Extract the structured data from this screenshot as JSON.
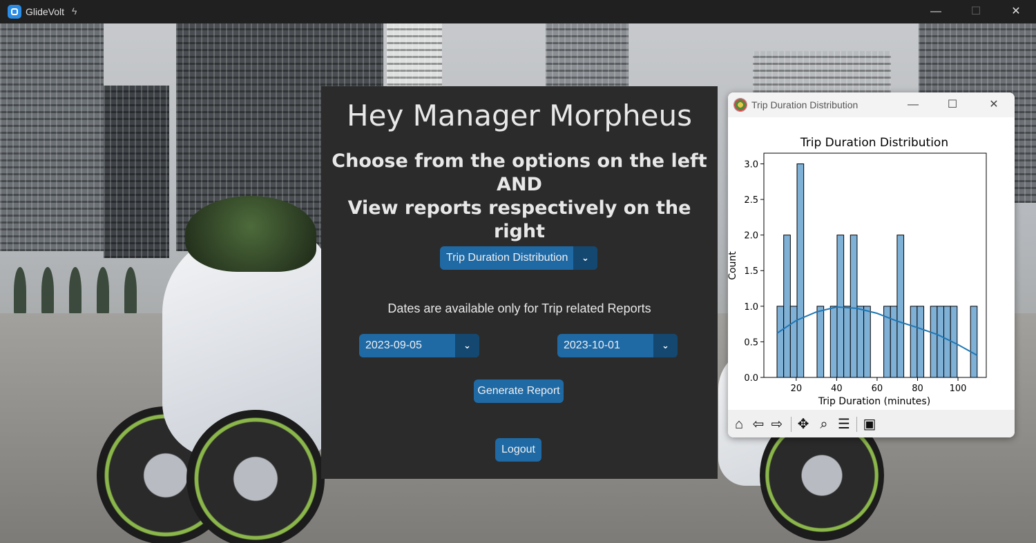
{
  "app": {
    "title": "GlideVolt",
    "title_suffix_icon": "bolt-icon",
    "window_controls": {
      "minimize": "—",
      "maximize": "☐",
      "close": "✕"
    }
  },
  "panel": {
    "greeting": "Hey Manager Morpheus",
    "instruction_lines": [
      "Choose from the options on the left",
      "AND",
      "View reports respectively on the right"
    ],
    "report_select": {
      "value": "Trip Duration Distribution",
      "arrow": "⌄"
    },
    "dates_note": "Dates are available only for Trip related Reports",
    "start_date": {
      "value": "2023-09-05",
      "arrow": "⌄"
    },
    "end_date": {
      "value": "2023-10-01",
      "arrow": "⌄"
    },
    "generate_label": "Generate Report",
    "logout_label": "Logout",
    "colors": {
      "panel_bg": "#2b2b2b",
      "accent": "#1f6aa5",
      "accent_dark": "#144870"
    }
  },
  "chart_window": {
    "title": "Trip Duration Distribution",
    "controls": {
      "minimize": "—",
      "maximize": "☐",
      "close": "✕"
    },
    "toolbar": [
      {
        "name": "home-icon",
        "glyph": "⌂"
      },
      {
        "name": "back-icon",
        "glyph": "⇦"
      },
      {
        "name": "forward-icon",
        "glyph": "⇨"
      },
      {
        "name": "pan-icon",
        "glyph": "✥"
      },
      {
        "name": "zoom-icon",
        "glyph": "⌕"
      },
      {
        "name": "configure-icon",
        "glyph": "☰"
      },
      {
        "name": "save-icon",
        "glyph": "▣"
      }
    ]
  },
  "chart_data": {
    "type": "histogram",
    "title": "Trip Duration Distribution",
    "xlabel": "Trip Duration (minutes)",
    "ylabel": "Count",
    "xlim": [
      4,
      114
    ],
    "ylim": [
      0,
      3.15
    ],
    "xticks": [
      20,
      40,
      60,
      80,
      100
    ],
    "yticks": [
      "0.0",
      "0.5",
      "1.0",
      "1.5",
      "2.0",
      "2.5",
      "3.0"
    ],
    "bin_width": 3.3,
    "bins": [
      {
        "x0": 10.5,
        "count": 1
      },
      {
        "x0": 13.8,
        "count": 2
      },
      {
        "x0": 17.1,
        "count": 1
      },
      {
        "x0": 20.4,
        "count": 3
      },
      {
        "x0": 23.7,
        "count": 0
      },
      {
        "x0": 27.0,
        "count": 0
      },
      {
        "x0": 30.3,
        "count": 1
      },
      {
        "x0": 33.6,
        "count": 0
      },
      {
        "x0": 36.9,
        "count": 1
      },
      {
        "x0": 40.2,
        "count": 2
      },
      {
        "x0": 43.5,
        "count": 1
      },
      {
        "x0": 46.8,
        "count": 2
      },
      {
        "x0": 50.1,
        "count": 1
      },
      {
        "x0": 53.4,
        "count": 1
      },
      {
        "x0": 56.7,
        "count": 0
      },
      {
        "x0": 60.0,
        "count": 0
      },
      {
        "x0": 63.3,
        "count": 1
      },
      {
        "x0": 66.6,
        "count": 1
      },
      {
        "x0": 69.9,
        "count": 2
      },
      {
        "x0": 73.2,
        "count": 0
      },
      {
        "x0": 76.5,
        "count": 1
      },
      {
        "x0": 79.8,
        "count": 1
      },
      {
        "x0": 83.1,
        "count": 0
      },
      {
        "x0": 86.4,
        "count": 1
      },
      {
        "x0": 89.7,
        "count": 1
      },
      {
        "x0": 93.0,
        "count": 1
      },
      {
        "x0": 96.3,
        "count": 1
      },
      {
        "x0": 99.6,
        "count": 0
      },
      {
        "x0": 102.9,
        "count": 0
      },
      {
        "x0": 106.2,
        "count": 1
      }
    ],
    "kde": [
      [
        10.5,
        0.62
      ],
      [
        20,
        0.8
      ],
      [
        30,
        0.92
      ],
      [
        40,
        0.99
      ],
      [
        50,
        0.97
      ],
      [
        60,
        0.9
      ],
      [
        70,
        0.79
      ],
      [
        80,
        0.7
      ],
      [
        90,
        0.6
      ],
      [
        100,
        0.46
      ],
      [
        109.5,
        0.31
      ]
    ],
    "bar_color": "#7fb0d6",
    "line_color": "#1f77b4"
  }
}
